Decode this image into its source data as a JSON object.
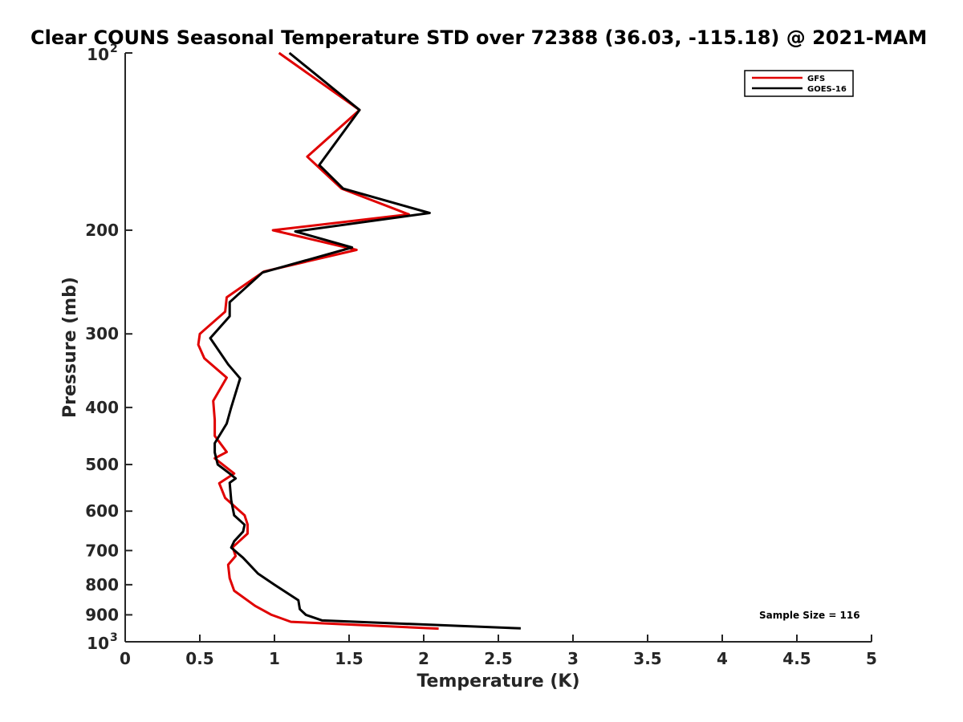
{
  "chart_data": {
    "type": "line",
    "title": "Clear COUNS Seasonal Temperature STD over 72388 (36.03, -115.18) @ 2021-MAM",
    "xlabel": "Temperature (K)",
    "ylabel": "Pressure (mb)",
    "xlim": [
      0,
      5
    ],
    "ylim": [
      100,
      1000
    ],
    "yscale": "log",
    "yreversed": true,
    "x_ticks": [
      "0",
      "0.5",
      "1",
      "1.5",
      "2",
      "2.5",
      "3",
      "3.5",
      "4",
      "4.5",
      "5"
    ],
    "y_ticks": [
      {
        "value": 100,
        "base": "10",
        "exp": "2"
      },
      {
        "value": 200,
        "label": "200"
      },
      {
        "value": 300,
        "label": "300"
      },
      {
        "value": 400,
        "label": "400"
      },
      {
        "value": 500,
        "label": "500"
      },
      {
        "value": 600,
        "label": "600"
      },
      {
        "value": 700,
        "label": "700"
      },
      {
        "value": 800,
        "label": "800"
      },
      {
        "value": 900,
        "label": "900"
      },
      {
        "value": 1000,
        "base": "10",
        "exp": "3"
      }
    ],
    "legend_position": "top-right",
    "annotation": "Sample Size = 116",
    "series": [
      {
        "name": "GFS",
        "color": "#e00000",
        "points": [
          [
            1.03,
            100
          ],
          [
            1.57,
            125
          ],
          [
            1.22,
            150
          ],
          [
            1.45,
            170
          ],
          [
            1.9,
            188
          ],
          [
            0.99,
            200
          ],
          [
            1.55,
            216
          ],
          [
            0.93,
            235
          ],
          [
            0.68,
            260
          ],
          [
            0.67,
            275
          ],
          [
            0.5,
            300
          ],
          [
            0.49,
            313
          ],
          [
            0.53,
            330
          ],
          [
            0.68,
            356
          ],
          [
            0.59,
            390
          ],
          [
            0.6,
            420
          ],
          [
            0.6,
            447
          ],
          [
            0.68,
            476
          ],
          [
            0.6,
            488
          ],
          [
            0.73,
            518
          ],
          [
            0.63,
            538
          ],
          [
            0.67,
            570
          ],
          [
            0.8,
            610
          ],
          [
            0.82,
            632
          ],
          [
            0.82,
            655
          ],
          [
            0.72,
            691
          ],
          [
            0.74,
            715
          ],
          [
            0.69,
            740
          ],
          [
            0.7,
            780
          ],
          [
            0.73,
            819
          ],
          [
            0.87,
            869
          ],
          [
            0.98,
            900
          ],
          [
            1.11,
            925
          ],
          [
            2.1,
            950
          ]
        ]
      },
      {
        "name": "GOES-16",
        "color": "#000000",
        "points": [
          [
            1.1,
            100
          ],
          [
            1.57,
            125
          ],
          [
            1.3,
            155
          ],
          [
            1.46,
            170
          ],
          [
            2.04,
            187
          ],
          [
            1.14,
            201
          ],
          [
            1.52,
            214
          ],
          [
            0.92,
            236
          ],
          [
            0.7,
            265
          ],
          [
            0.7,
            280
          ],
          [
            0.57,
            305
          ],
          [
            0.69,
            338
          ],
          [
            0.77,
            357
          ],
          [
            0.71,
            400
          ],
          [
            0.68,
            426
          ],
          [
            0.6,
            460
          ],
          [
            0.6,
            477
          ],
          [
            0.62,
            500
          ],
          [
            0.7,
            518
          ],
          [
            0.74,
            528
          ],
          [
            0.7,
            537
          ],
          [
            0.71,
            575
          ],
          [
            0.73,
            610
          ],
          [
            0.8,
            633
          ],
          [
            0.79,
            650
          ],
          [
            0.73,
            675
          ],
          [
            0.71,
            692
          ],
          [
            0.79,
            720
          ],
          [
            0.89,
            766
          ],
          [
            1.0,
            800
          ],
          [
            1.16,
            850
          ],
          [
            1.17,
            880
          ],
          [
            1.21,
            900
          ],
          [
            1.32,
            920
          ],
          [
            2.65,
            949
          ]
        ]
      }
    ]
  }
}
